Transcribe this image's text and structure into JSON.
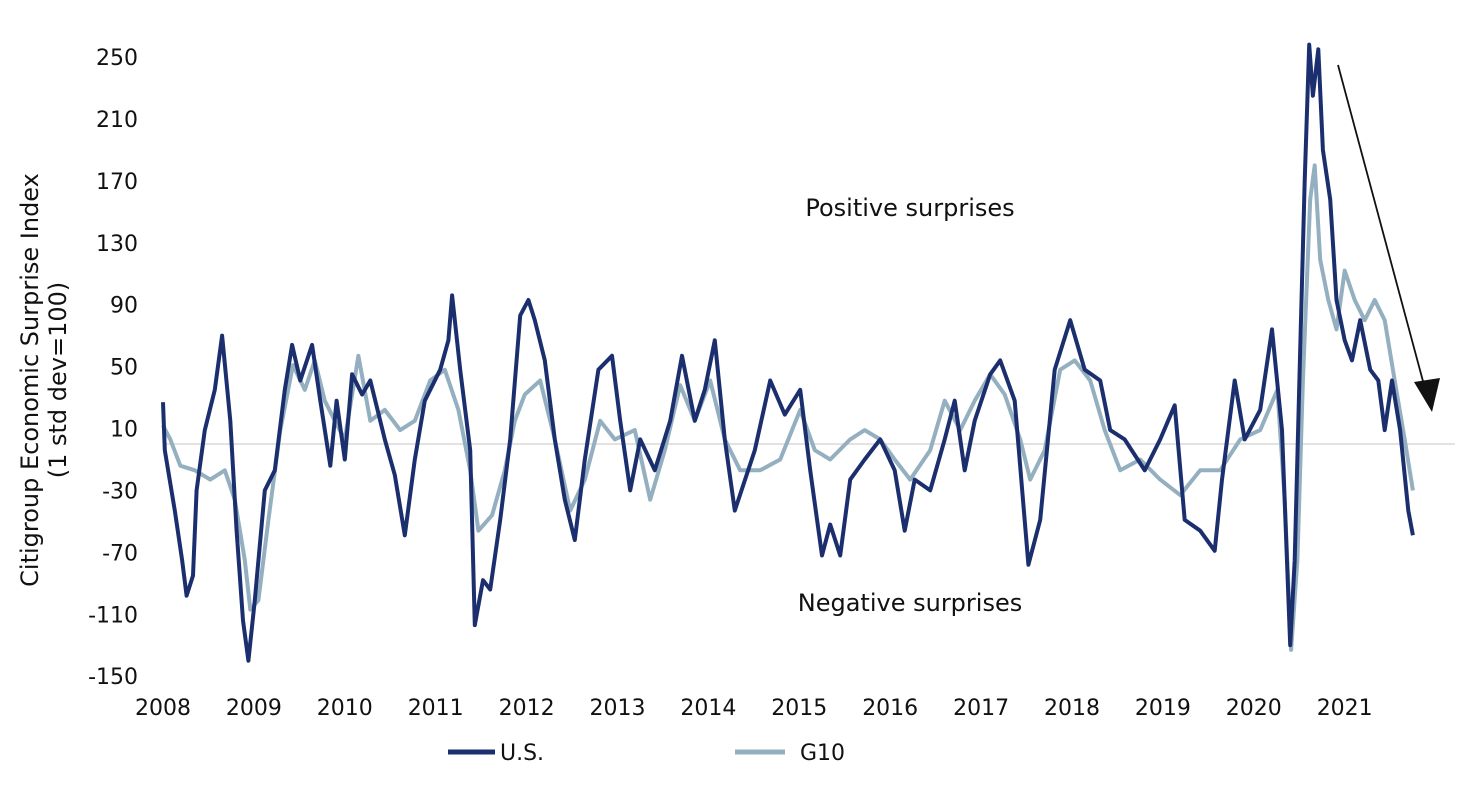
{
  "chart_data": {
    "type": "line",
    "ylabel": "Citigroup Economic Surprise Index",
    "ylabel_sub": "(1 std dev=100)",
    "ylim": [
      -150,
      250
    ],
    "yticks": [
      250,
      210,
      170,
      130,
      90,
      50,
      10,
      -30,
      -70,
      -110,
      -150
    ],
    "xticks": [
      "2008",
      "2009",
      "2010",
      "2011",
      "2012",
      "2013",
      "2014",
      "2015",
      "2016",
      "2017",
      "2018",
      "2019",
      "2020",
      "2021"
    ],
    "xlim": [
      2008,
      2021.75
    ],
    "grid": false,
    "legend_position": "bottom",
    "annotations": {
      "positive": "Positive surprises",
      "negative": "Negative surprises"
    },
    "series": [
      {
        "name": "U.S.",
        "color": "#1b2f6e",
        "x": [
          2008.0,
          2008.02,
          2008.13,
          2008.21,
          2008.26,
          2008.33,
          2008.37,
          2008.46,
          2008.57,
          2008.65,
          2008.74,
          2008.81,
          2008.88,
          2008.94,
          2009.01,
          2009.12,
          2009.23,
          2009.34,
          2009.42,
          2009.51,
          2009.64,
          2009.73,
          2009.84,
          2009.91,
          2010.0,
          2010.08,
          2010.19,
          2010.28,
          2010.44,
          2010.55,
          2010.66,
          2010.77,
          2010.88,
          2011.05,
          2011.14,
          2011.18,
          2011.27,
          2011.38,
          2011.43,
          2011.52,
          2011.6,
          2011.71,
          2011.82,
          2011.93,
          2012.02,
          2012.09,
          2012.2,
          2012.31,
          2012.42,
          2012.53,
          2012.64,
          2012.79,
          2012.94,
          2013.03,
          2013.14,
          2013.25,
          2013.41,
          2013.58,
          2013.71,
          2013.85,
          2013.96,
          2014.07,
          2014.18,
          2014.29,
          2014.51,
          2014.68,
          2014.84,
          2015.01,
          2015.12,
          2015.25,
          2015.34,
          2015.45,
          2015.56,
          2015.72,
          2015.89,
          2016.05,
          2016.16,
          2016.27,
          2016.44,
          2016.6,
          2016.71,
          2016.82,
          2016.93,
          2017.1,
          2017.21,
          2017.37,
          2017.52,
          2017.65,
          2017.81,
          2017.98,
          2018.14,
          2018.31,
          2018.42,
          2018.58,
          2018.8,
          2018.97,
          2019.13,
          2019.24,
          2019.41,
          2019.57,
          2019.65,
          2019.79,
          2019.9,
          2020.07,
          2020.2,
          2020.31,
          2020.4,
          2020.45,
          2020.51,
          2020.56,
          2020.61,
          2020.65,
          2020.71,
          2020.76,
          2020.84,
          2020.91,
          2021.0,
          2021.08,
          2021.17,
          2021.28,
          2021.37,
          2021.44,
          2021.52,
          2021.61,
          2021.7,
          2021.75
        ],
        "values": [
          27,
          -4,
          -43,
          -75,
          -98,
          -85,
          -30,
          9,
          35,
          70,
          15,
          -56,
          -114,
          -140,
          -101,
          -30,
          -17,
          35,
          64,
          41,
          64,
          28,
          -14,
          28,
          -10,
          45,
          32,
          41,
          3,
          -20,
          -59,
          -10,
          28,
          48,
          67,
          96,
          48,
          -4,
          -117,
          -88,
          -94,
          -49,
          3,
          83,
          93,
          80,
          54,
          3,
          -36,
          -62,
          -10,
          48,
          57,
          15,
          -30,
          3,
          -17,
          15,
          57,
          15,
          35,
          67,
          3,
          -43,
          -4,
          41,
          19,
          35,
          -17,
          -72,
          -52,
          -72,
          -23,
          -10,
          3,
          -17,
          -56,
          -23,
          -30,
          3,
          28,
          -17,
          15,
          45,
          54,
          28,
          -78,
          -49,
          48,
          80,
          48,
          41,
          9,
          3,
          -17,
          3,
          25,
          -49,
          -56,
          -69,
          -23,
          41,
          3,
          22,
          74,
          9,
          -130,
          -75,
          61,
          170,
          258,
          225,
          255,
          190,
          158,
          93,
          67,
          54,
          80,
          48,
          41,
          9,
          41,
          9,
          -43,
          -59
        ]
      },
      {
        "name": "G10",
        "color": "#94afc0",
        "x": [
          2008.0,
          2008.08,
          2008.19,
          2008.35,
          2008.52,
          2008.68,
          2008.79,
          2008.9,
          2008.96,
          2009.05,
          2009.16,
          2009.29,
          2009.43,
          2009.56,
          2009.67,
          2009.78,
          2009.89,
          2010.0,
          2010.15,
          2010.28,
          2010.44,
          2010.61,
          2010.77,
          2010.94,
          2011.1,
          2011.25,
          2011.38,
          2011.47,
          2011.62,
          2011.76,
          2011.87,
          2011.98,
          2012.15,
          2012.31,
          2012.48,
          2012.64,
          2012.81,
          2012.97,
          2013.19,
          2013.36,
          2013.52,
          2013.69,
          2013.85,
          2014.02,
          2014.18,
          2014.35,
          2014.57,
          2014.79,
          2015.01,
          2015.17,
          2015.34,
          2015.56,
          2015.72,
          2015.89,
          2016.05,
          2016.22,
          2016.44,
          2016.6,
          2016.77,
          2016.93,
          2017.1,
          2017.26,
          2017.43,
          2017.54,
          2017.7,
          2017.87,
          2018.03,
          2018.2,
          2018.36,
          2018.53,
          2018.75,
          2018.97,
          2019.19,
          2019.41,
          2019.63,
          2019.85,
          2020.07,
          2020.26,
          2020.34,
          2020.41,
          2020.48,
          2020.54,
          2020.62,
          2020.67,
          2020.73,
          2020.82,
          2020.91,
          2021.0,
          2021.11,
          2021.22,
          2021.33,
          2021.44,
          2021.55,
          2021.66,
          2021.75
        ],
        "values": [
          12,
          3,
          -14,
          -17,
          -23,
          -17,
          -36,
          -75,
          -107,
          -101,
          -49,
          9,
          51,
          35,
          54,
          28,
          15,
          3,
          57,
          15,
          22,
          9,
          15,
          41,
          48,
          22,
          -17,
          -56,
          -46,
          -17,
          15,
          32,
          41,
          3,
          -43,
          -23,
          15,
          3,
          9,
          -36,
          -4,
          38,
          15,
          41,
          3,
          -17,
          -17,
          -10,
          22,
          -4,
          -10,
          3,
          9,
          3,
          -10,
          -23,
          -4,
          28,
          9,
          28,
          45,
          32,
          3,
          -23,
          -4,
          48,
          54,
          41,
          9,
          -17,
          -10,
          -23,
          -33,
          -17,
          -17,
          3,
          9,
          35,
          -36,
          -133,
          -75,
          41,
          158,
          180,
          119,
          93,
          74,
          112,
          93,
          80,
          93,
          80,
          41,
          3,
          -30
        ]
      }
    ]
  }
}
